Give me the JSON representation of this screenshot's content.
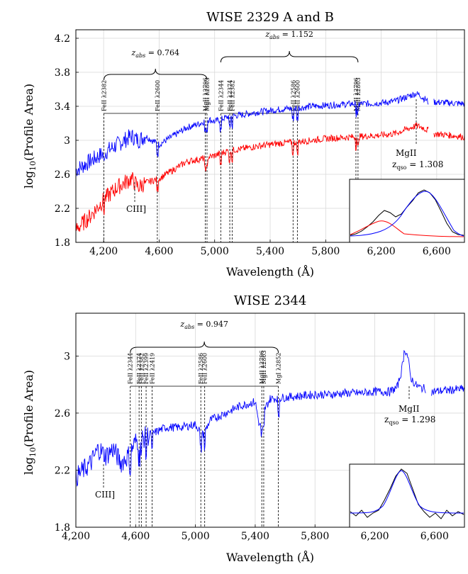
{
  "chart_data": [
    {
      "type": "line",
      "title": "WISE 2329 A and B",
      "xlabel": "Wavelength (Å)",
      "ylabel": "log10(Profile Area)",
      "ylabel_main": "log",
      "ylabel_sub": "10",
      "ylabel_rest": "(Profile Area)",
      "xlim": [
        4000,
        6800
      ],
      "ylim": [
        1.8,
        4.3
      ],
      "xticks": [
        4200,
        4600,
        5000,
        5400,
        5800,
        6200,
        6600
      ],
      "xtick_labels": [
        "4,200",
        "4,600",
        "5,000",
        "5,400",
        "5,800",
        "6,200",
        "6,600"
      ],
      "yticks": [
        1.8,
        2.2,
        2.6,
        3,
        3.4,
        3.8,
        4.2
      ],
      "ytick_labels": [
        "1.8",
        "2.2",
        "2.6",
        "3",
        "3.4",
        "3.8",
        "4.2"
      ],
      "grid": true,
      "series": [
        {
          "color": "#0000ff",
          "x": [
            4000,
            4100,
            4200,
            4300,
            4400,
            4450,
            4500,
            4600,
            4700,
            4800,
            4900,
            4950,
            5000,
            5100,
            5200,
            5300,
            5400,
            5500,
            5600,
            5700,
            5800,
            5900,
            6000,
            6100,
            6200,
            6300,
            6400,
            6450,
            6480,
            6500,
            6520,
            6540
          ],
          "y": [
            2.65,
            2.75,
            2.85,
            2.95,
            3.05,
            3.0,
            3.05,
            2.95,
            3.05,
            3.15,
            3.2,
            3.25,
            3.22,
            3.28,
            3.3,
            3.33,
            3.35,
            3.37,
            3.38,
            3.4,
            3.41,
            3.42,
            3.43,
            3.43,
            3.44,
            3.46,
            3.52,
            3.55,
            3.53,
            3.5,
            3.48,
            3.45
          ],
          "gap_x": [
            6580,
            6800
          ],
          "gap_y": [
            3.45,
            3.43
          ]
        },
        {
          "color": "#ff0000",
          "x": [
            4000,
            4100,
            4200,
            4300,
            4400,
            4450,
            4500,
            4600,
            4700,
            4800,
            4900,
            4950,
            5000,
            5100,
            5200,
            5300,
            5400,
            5500,
            5600,
            5700,
            5800,
            5900,
            6000,
            6100,
            6200,
            6300,
            6400,
            6450,
            6480,
            6500,
            6520,
            6540
          ],
          "y": [
            1.95,
            2.1,
            2.3,
            2.45,
            2.55,
            2.45,
            2.5,
            2.55,
            2.65,
            2.75,
            2.78,
            2.8,
            2.82,
            2.88,
            2.9,
            2.93,
            2.95,
            2.97,
            2.98,
            3.0,
            3.02,
            3.03,
            3.04,
            3.05,
            3.06,
            3.08,
            3.14,
            3.17,
            3.16,
            3.15,
            3.13,
            3.12
          ],
          "gap_x": [
            6580,
            6800
          ],
          "gap_y": [
            3.08,
            3.04
          ]
        }
      ],
      "absorbers": [
        {
          "z_label": "z_abs = 0.764",
          "z_main": "z",
          "z_sub": "abs",
          "z_value": " = 0.764",
          "lines": [
            {
              "wl": 4202,
              "label": "FeII λ2382"
            },
            {
              "wl": 4587,
              "label": "FeII λ2600"
            },
            {
              "wl": 4932,
              "label": "MgII λ2796"
            },
            {
              "wl": 4945,
              "label": "MgII λ2803"
            }
          ]
        },
        {
          "z_label": "z_abs = 1.152",
          "z_main": "z",
          "z_sub": "abs",
          "z_value": " = 1.152",
          "lines": [
            {
              "wl": 5044,
              "label": "FeII λ2344"
            },
            {
              "wl": 5109,
              "label": "FeII λ2374"
            },
            {
              "wl": 5126,
              "label": "FeII λ2382"
            },
            {
              "wl": 5565,
              "label": "FeII λ2586"
            },
            {
              "wl": 5596,
              "label": "FeII λ2600"
            },
            {
              "wl": 6018,
              "label": "MgII λ2796"
            },
            {
              "wl": 6033,
              "label": "MgII λ2803"
            }
          ]
        }
      ],
      "annotations": [
        {
          "text": "CIII]",
          "wl": 4420
        },
        {
          "text": "MgII",
          "wl": 6450
        },
        {
          "text": "z_qso = 1.308",
          "main": "z",
          "sub": "qso",
          "value": " = 1.308"
        }
      ]
    },
    {
      "type": "line",
      "title": "WISE 2344",
      "xlabel": "Wavelength (Å)",
      "ylabel": "log10(Profile Area)",
      "ylabel_main": "log",
      "ylabel_sub": "10",
      "ylabel_rest": "(Profile Area)",
      "xlim": [
        4200,
        6800
      ],
      "ylim": [
        1.8,
        3.3
      ],
      "xticks": [
        4200,
        4600,
        5000,
        5400,
        5800,
        6200,
        6600
      ],
      "xtick_labels": [
        "4,200",
        "4,600",
        "5,000",
        "5,400",
        "5,800",
        "6,200",
        "6,600"
      ],
      "yticks": [
        1.8,
        2.2,
        2.6,
        3
      ],
      "ytick_labels": [
        "1.8",
        "2.2",
        "2.6",
        "3"
      ],
      "grid": true,
      "series": [
        {
          "color": "#0000ff",
          "x": [
            4200,
            4250,
            4300,
            4350,
            4400,
            4450,
            4500,
            4550,
            4600,
            4700,
            4800,
            4900,
            5000,
            5050,
            5100,
            5200,
            5300,
            5400,
            5430,
            5450,
            5500,
            5600,
            5700,
            5800,
            5900,
            6000,
            6100,
            6200,
            6300,
            6350,
            6380,
            6400,
            6420,
            6440,
            6470,
            6500,
            6540
          ],
          "y": [
            2.15,
            2.2,
            2.25,
            2.35,
            2.3,
            2.35,
            2.25,
            2.3,
            2.4,
            2.45,
            2.5,
            2.5,
            2.52,
            2.45,
            2.55,
            2.6,
            2.65,
            2.68,
            2.5,
            2.6,
            2.7,
            2.71,
            2.72,
            2.73,
            2.73,
            2.74,
            2.74,
            2.75,
            2.75,
            2.78,
            2.9,
            3.05,
            3.0,
            2.85,
            2.8,
            2.78,
            2.77
          ],
          "gap_x": [
            6580,
            6800
          ],
          "gap_y": [
            2.75,
            2.77
          ]
        }
      ],
      "absorbers": [
        {
          "z_label": "z_abs = 0.947",
          "z_main": "z",
          "z_sub": "abs",
          "z_value": " = 0.947",
          "lines": [
            {
              "wl": 4564,
              "label": "FeII λ2344"
            },
            {
              "wl": 4623,
              "label": "FeII λ2374"
            },
            {
              "wl": 4638,
              "label": "FeII λ2382"
            },
            {
              "wl": 4670,
              "label": "FeII λ2399"
            },
            {
              "wl": 4710,
              "label": "FeII λ2419"
            },
            {
              "wl": 5036,
              "label": "FeII λ2586"
            },
            {
              "wl": 5062,
              "label": "FeII λ2600"
            },
            {
              "wl": 5444,
              "label": "MgII λ2796"
            },
            {
              "wl": 5457,
              "label": "MgII λ2803"
            },
            {
              "wl": 5555,
              "label": "MgI λ2852"
            }
          ]
        }
      ],
      "annotations": [
        {
          "text": "CIII]",
          "wl": 4380
        },
        {
          "text": "MgII",
          "wl": 6420
        },
        {
          "text": "z_qso = 1.298",
          "main": "z",
          "sub": "qso",
          "value": " = 1.298"
        }
      ]
    }
  ]
}
